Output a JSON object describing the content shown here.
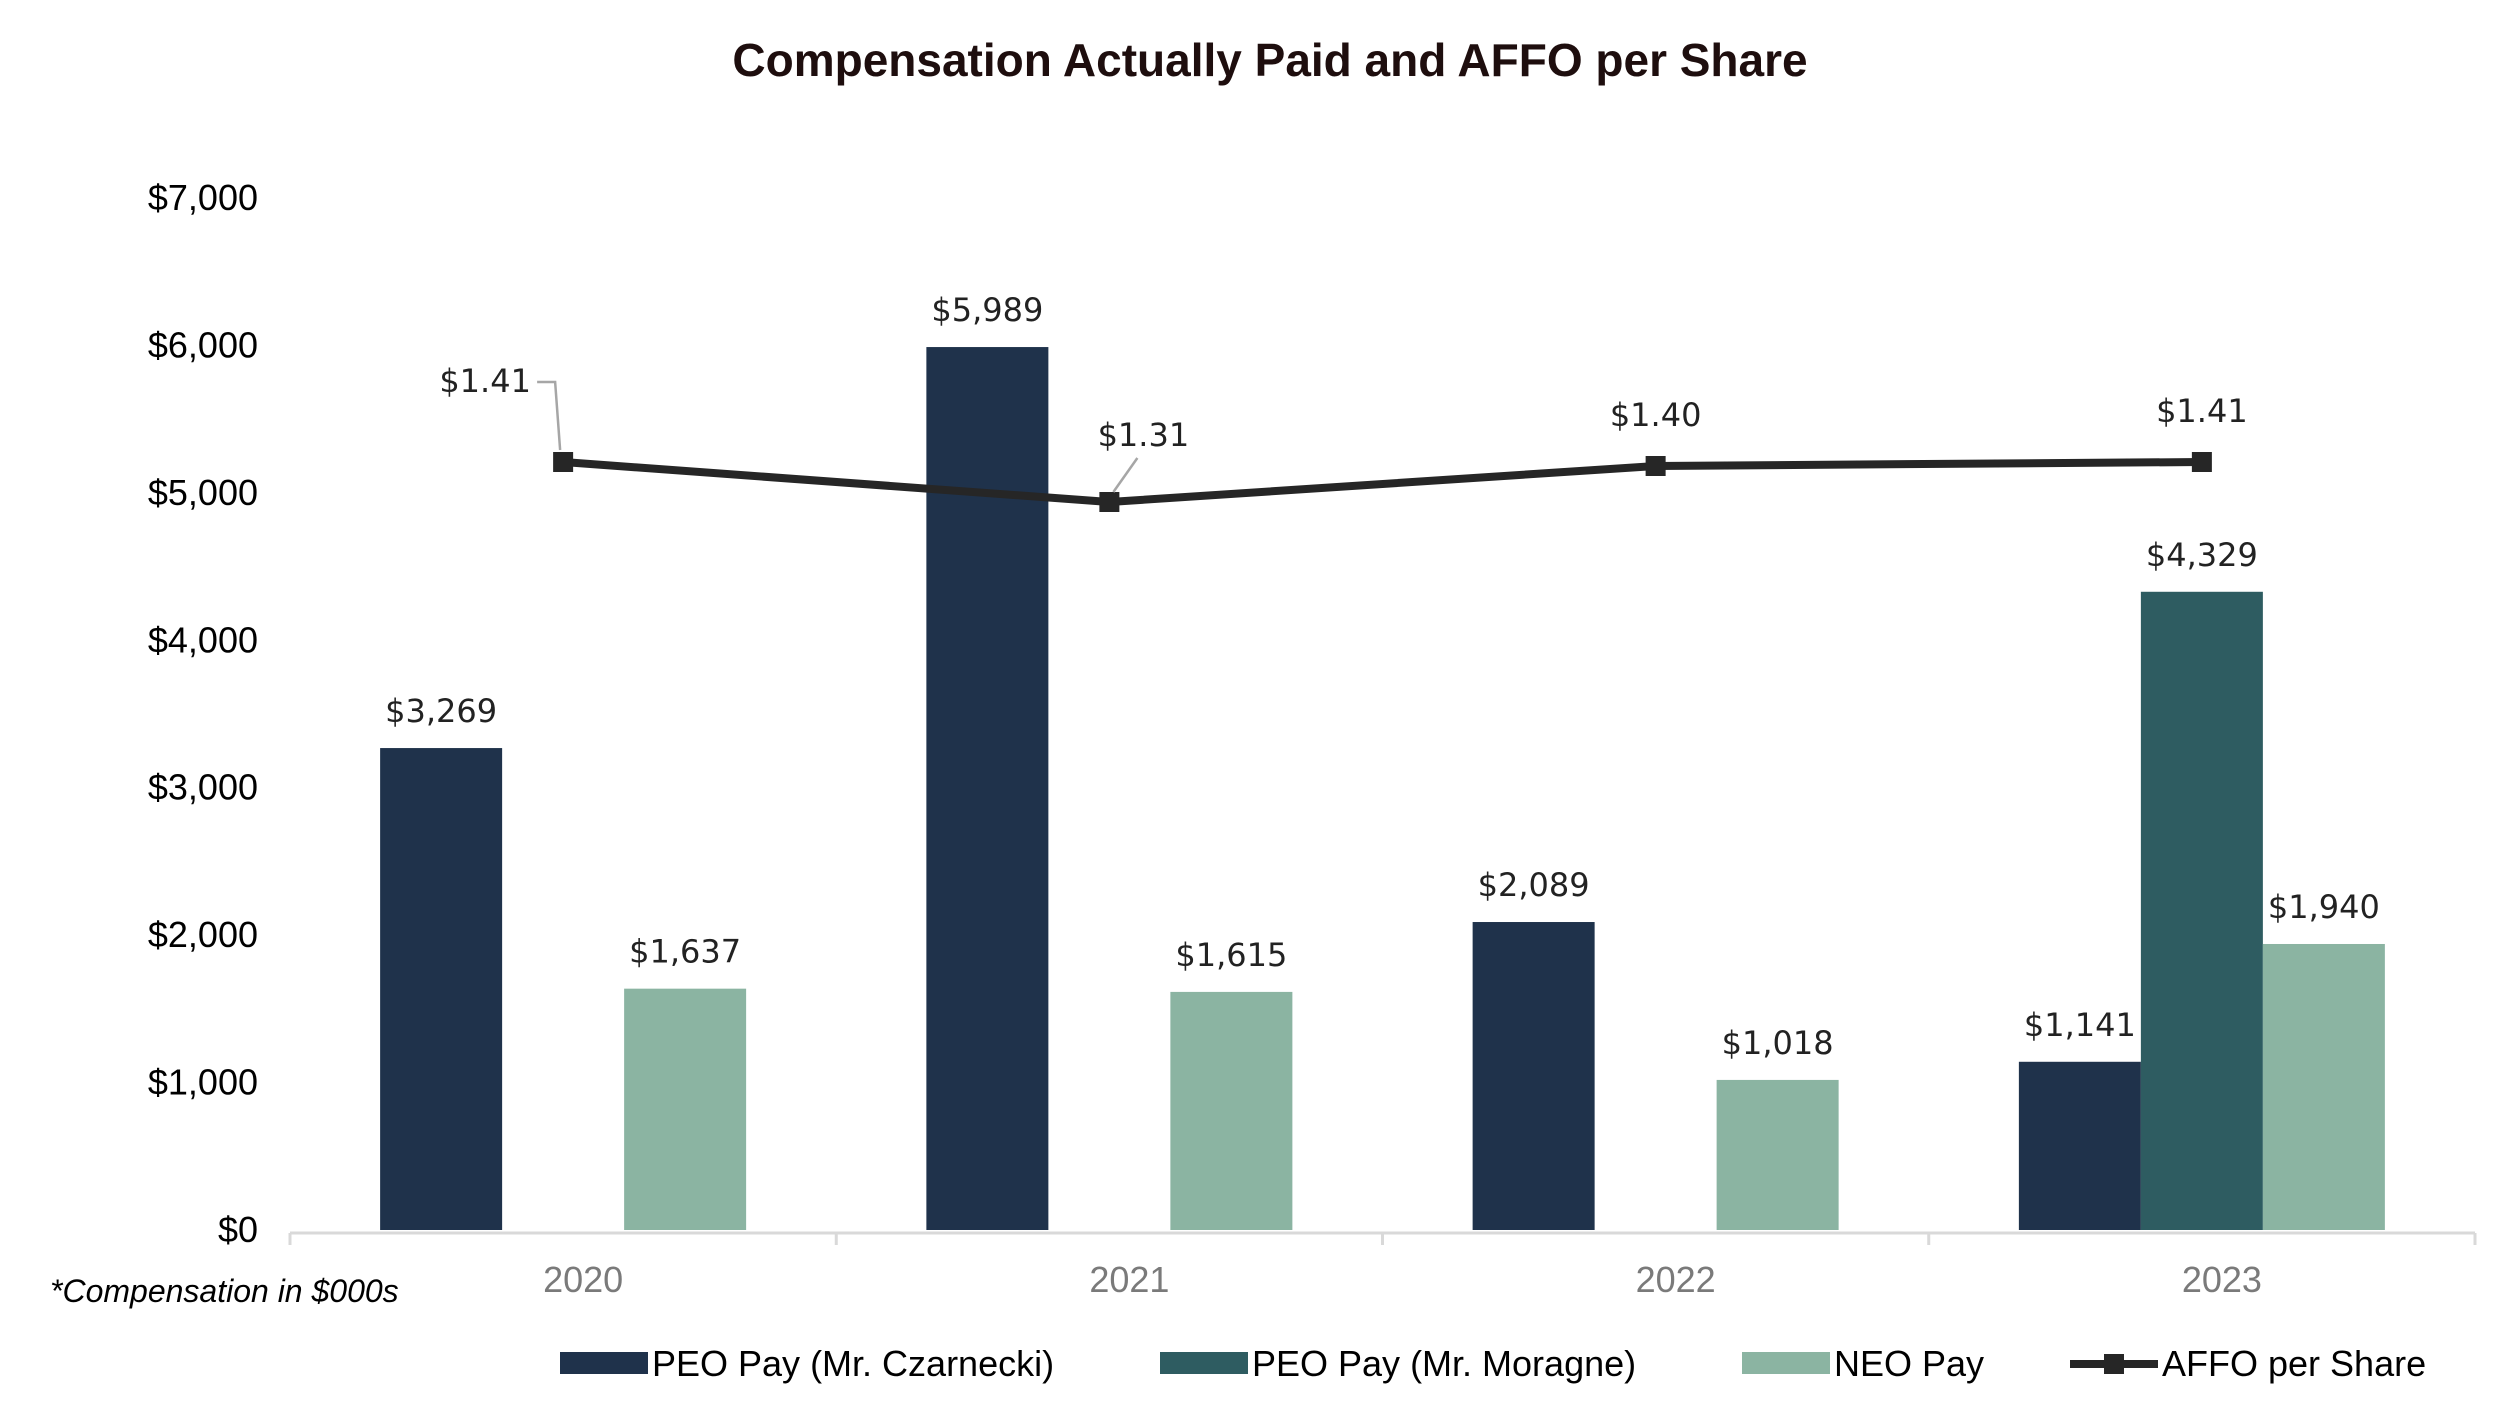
{
  "chart_data": {
    "type": "bar",
    "title": "Compensation Actually Paid and AFFO per Share",
    "footnote": "*Compensation in $000s",
    "categories": [
      "2020",
      "2021",
      "2022",
      "2023"
    ],
    "ylim": [
      0,
      7000
    ],
    "y_ticks": [
      0,
      1000,
      2000,
      3000,
      4000,
      5000,
      6000,
      7000
    ],
    "y_tick_labels": [
      "$0",
      "$1,000",
      "$2,000",
      "$3,000",
      "$4,000",
      "$5,000",
      "$6,000",
      "$7,000"
    ],
    "grid": false,
    "legend_position": "bottom",
    "series": [
      {
        "name": "PEO Pay (Mr. Czarnecki)",
        "type": "bar",
        "color": "#1f324b",
        "values": [
          3269,
          5989,
          2089,
          1141
        ],
        "labels": [
          "$3,269",
          "$5,989",
          "$2,089",
          "$1,141"
        ]
      },
      {
        "name": "PEO Pay (Mr. Moragne)",
        "type": "bar",
        "color": "#2e5c61",
        "values": [
          null,
          null,
          null,
          4329
        ],
        "labels": [
          null,
          null,
          null,
          "$4,329"
        ]
      },
      {
        "name": "NEO Pay",
        "type": "bar",
        "color": "#8bb4a2",
        "values": [
          1637,
          1615,
          1018,
          1940
        ],
        "labels": [
          "$1,637",
          "$1,615",
          "$1,018",
          "$1,940"
        ]
      },
      {
        "name": "AFFO per Share",
        "type": "line",
        "color": "#262626",
        "values": [
          1.41,
          1.31,
          1.4,
          1.41
        ],
        "labels": [
          "$1.41",
          "$1.31",
          "$1.40",
          "$1.41"
        ]
      }
    ]
  }
}
